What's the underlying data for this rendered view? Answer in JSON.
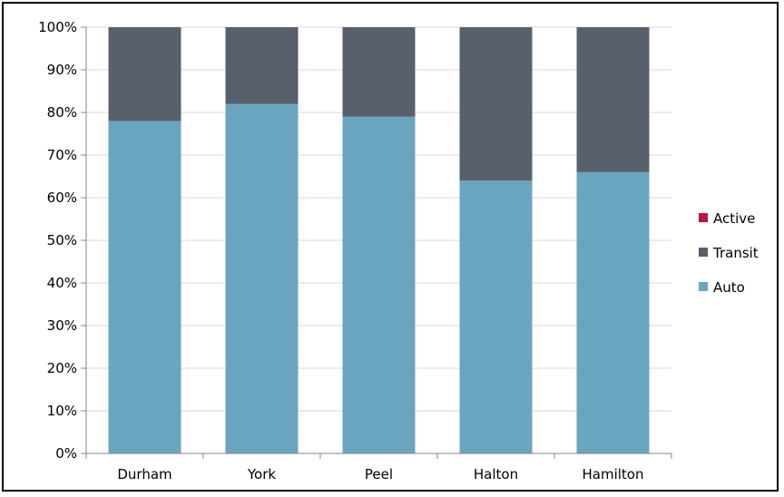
{
  "chart_data": {
    "type": "bar",
    "stacked": true,
    "categories": [
      "Durham",
      "York",
      "Peel",
      "Halton",
      "Hamilton"
    ],
    "series": [
      {
        "name": "Auto",
        "color": "#6aa5c0",
        "values": [
          78,
          82,
          79,
          64,
          66
        ]
      },
      {
        "name": "Transit",
        "color": "#57606b",
        "values": [
          22,
          18,
          21,
          36,
          34
        ]
      },
      {
        "name": "Active",
        "color": "#c0143c",
        "values": [
          0,
          0,
          0,
          0,
          0
        ]
      }
    ],
    "title": "",
    "xlabel": "",
    "ylabel": "",
    "ylim": [
      0,
      100
    ],
    "yticks": [
      "0%",
      "10%",
      "20%",
      "30%",
      "40%",
      "50%",
      "60%",
      "70%",
      "80%",
      "90%",
      "100%"
    ],
    "grid": true,
    "legend": {
      "placement": "right",
      "order": [
        "Active",
        "Transit",
        "Auto"
      ]
    }
  }
}
